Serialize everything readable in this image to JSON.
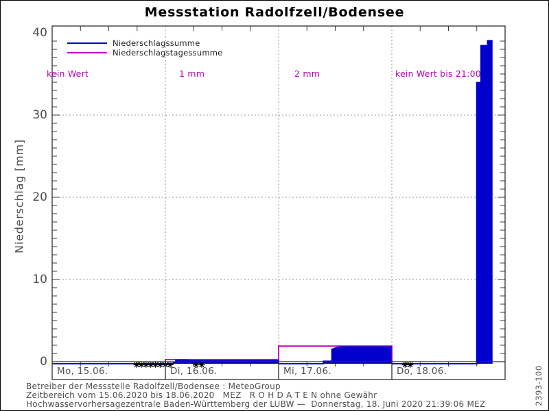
{
  "title": "Messstation Radolfzell/Bodensee",
  "legend": {
    "items": [
      {
        "label": "Niederschlagssumme",
        "color": "#0000cd"
      },
      {
        "label": "Niederschlagstagessumme",
        "color": "#c400c4"
      }
    ]
  },
  "y_axis": {
    "label": "Niederschlag [mm]",
    "tick_labels": [
      "40",
      "30",
      "20",
      "10",
      "0"
    ]
  },
  "x_axis": {
    "day_labels": [
      "Mo, 15.06.",
      "Di, 16.06.",
      "Mi, 17.06.",
      "Do, 18.06."
    ]
  },
  "annotations": [
    {
      "text": "kein Wert"
    },
    {
      "text": "1 mm"
    },
    {
      "text": "2 mm"
    },
    {
      "text": "kein Wert bis 21:00"
    }
  ],
  "footer": {
    "lines": [
      "Betreiber der Messstelle Radolfzell/Bodensee : MeteoGroup",
      "Zeitbereich vom 15.06.2020 bis 18.06.2020   MEZ   R O H D A T E N ohne Gewähr",
      "Hochwasservorhersagezentrale Baden-Württemberg der LUBW —  Donnerstag, 18. Juni 2020 21:39:06 MEZ"
    ]
  },
  "side_label": "2393-100",
  "colors": {
    "series_sum": "#0000cd",
    "series_daily": "#c400c4",
    "annotation": "#b400b4",
    "axis_text": "#4f4f4f",
    "marker": "#000000"
  },
  "chart_data": {
    "type": "area",
    "title": "Messstation Radolfzell/Bodensee",
    "ylabel": "Niederschlag [mm]",
    "ylim": [
      0,
      40
    ],
    "y_major_ticks": [
      0,
      10,
      20,
      30,
      40
    ],
    "grid": "dotted",
    "legend_position": "top-left",
    "x_unit": "hours since 15.06.2020 00:00 MEZ",
    "xlim": [
      0,
      96
    ],
    "x_day_starts_hours": [
      0,
      24,
      48,
      72
    ],
    "x_day_labels": [
      "Mo, 15.06.",
      "Di, 16.06.",
      "Mi, 17.06.",
      "Do, 18.06."
    ],
    "grid_hours": [
      24,
      48,
      72
    ],
    "grid_mm": [
      10,
      20,
      30
    ],
    "series": [
      {
        "name": "Niederschlagssumme",
        "color": "#0000cd",
        "style": "step-area",
        "segments": [
          [
            [
              0,
              0
            ],
            [
              24,
              0
            ]
          ],
          [
            [
              24,
              0
            ],
            [
              25.7,
              0
            ],
            [
              25.7,
              0.15
            ],
            [
              26.2,
              0.15
            ],
            [
              26.2,
              0.45
            ],
            [
              28.6,
              0.45
            ],
            [
              28.6,
              0.35
            ],
            [
              48,
              0.35
            ],
            [
              48,
              0
            ]
          ],
          [
            [
              48,
              0
            ],
            [
              57.5,
              0
            ],
            [
              57.5,
              0.3
            ],
            [
              59.3,
              0.3
            ],
            [
              59.3,
              1.75
            ],
            [
              60,
              1.9
            ],
            [
              60.8,
              2.0
            ],
            [
              61.5,
              2.05
            ],
            [
              71.8,
              2.05
            ],
            [
              71.8,
              0
            ]
          ],
          [
            [
              72,
              0
            ],
            [
              90,
              0
            ],
            [
              90,
              34.2
            ],
            [
              90.9,
              34.2
            ],
            [
              90.9,
              38.7
            ],
            [
              92.3,
              38.7
            ],
            [
              92.3,
              39.3
            ],
            [
              93.2,
              39.3
            ],
            [
              93.2,
              0
            ]
          ]
        ]
      },
      {
        "name": "Niederschlagstagessumme",
        "color": "#c400c4",
        "style": "step-line",
        "points": [
          [
            24,
            0
          ],
          [
            24,
            0.5
          ],
          [
            48,
            0.5
          ],
          [
            48,
            2.15
          ],
          [
            72,
            2.15
          ],
          [
            72,
            0
          ]
        ]
      }
    ],
    "missing_value_marker_hours": [
      17.9,
      18.9,
      19.9,
      20.9,
      21.9,
      22.9,
      24.0,
      25.0,
      30.5,
      31.7,
      74.8,
      75.9
    ],
    "daily_totals_text": [
      "kein Wert",
      "1 mm",
      "2 mm",
      "kein Wert bis 21:00"
    ]
  }
}
